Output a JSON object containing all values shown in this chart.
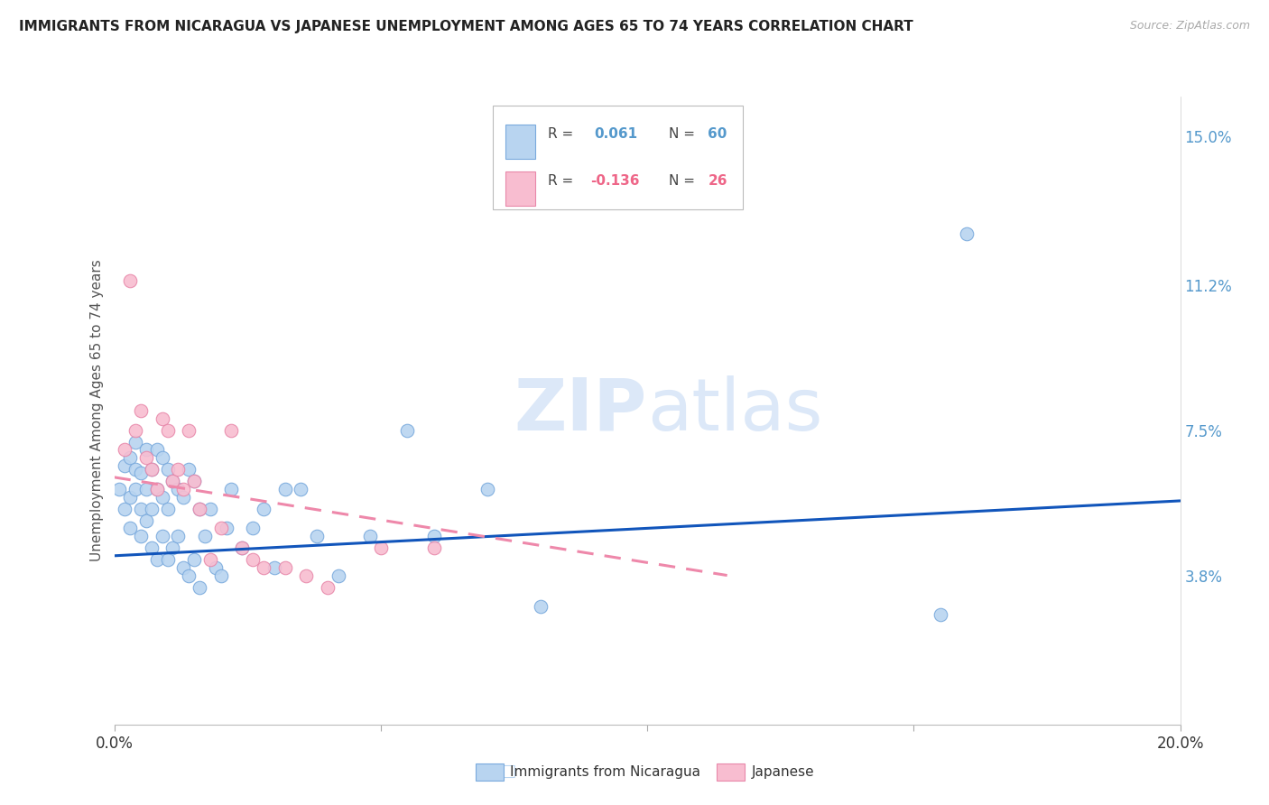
{
  "title": "IMMIGRANTS FROM NICARAGUA VS JAPANESE UNEMPLOYMENT AMONG AGES 65 TO 74 YEARS CORRELATION CHART",
  "source": "Source: ZipAtlas.com",
  "ylabel": "Unemployment Among Ages 65 to 74 years",
  "xlim": [
    0.0,
    0.2
  ],
  "ylim": [
    0.0,
    0.16
  ],
  "right_yticks": [
    0.038,
    0.075,
    0.112,
    0.15
  ],
  "right_yticklabels": [
    "3.8%",
    "7.5%",
    "11.2%",
    "15.0%"
  ],
  "blue_color": "#b8d4f0",
  "blue_edge": "#7aaadd",
  "pink_color": "#f8bdd0",
  "pink_edge": "#e888aa",
  "trend_blue": "#1155bb",
  "trend_pink": "#ee88aa",
  "watermark_color": "#dce8f8",
  "blue_scatter_x": [
    0.001,
    0.002,
    0.002,
    0.003,
    0.003,
    0.003,
    0.004,
    0.004,
    0.004,
    0.005,
    0.005,
    0.005,
    0.006,
    0.006,
    0.006,
    0.007,
    0.007,
    0.007,
    0.008,
    0.008,
    0.008,
    0.009,
    0.009,
    0.009,
    0.01,
    0.01,
    0.01,
    0.011,
    0.011,
    0.012,
    0.012,
    0.013,
    0.013,
    0.014,
    0.014,
    0.015,
    0.015,
    0.016,
    0.016,
    0.017,
    0.018,
    0.019,
    0.02,
    0.021,
    0.022,
    0.024,
    0.026,
    0.028,
    0.03,
    0.032,
    0.035,
    0.038,
    0.042,
    0.048,
    0.055,
    0.06,
    0.07,
    0.08,
    0.155,
    0.16
  ],
  "blue_scatter_y": [
    0.06,
    0.066,
    0.055,
    0.068,
    0.058,
    0.05,
    0.065,
    0.072,
    0.06,
    0.064,
    0.055,
    0.048,
    0.07,
    0.06,
    0.052,
    0.065,
    0.055,
    0.045,
    0.07,
    0.06,
    0.042,
    0.068,
    0.058,
    0.048,
    0.065,
    0.055,
    0.042,
    0.062,
    0.045,
    0.06,
    0.048,
    0.058,
    0.04,
    0.065,
    0.038,
    0.062,
    0.042,
    0.055,
    0.035,
    0.048,
    0.055,
    0.04,
    0.038,
    0.05,
    0.06,
    0.045,
    0.05,
    0.055,
    0.04,
    0.06,
    0.06,
    0.048,
    0.038,
    0.048,
    0.075,
    0.048,
    0.06,
    0.03,
    0.028,
    0.125
  ],
  "pink_scatter_x": [
    0.002,
    0.003,
    0.004,
    0.005,
    0.006,
    0.007,
    0.008,
    0.009,
    0.01,
    0.011,
    0.012,
    0.013,
    0.014,
    0.015,
    0.016,
    0.018,
    0.02,
    0.022,
    0.024,
    0.026,
    0.028,
    0.032,
    0.036,
    0.04,
    0.05,
    0.06
  ],
  "pink_scatter_y": [
    0.07,
    0.113,
    0.075,
    0.08,
    0.068,
    0.065,
    0.06,
    0.078,
    0.075,
    0.062,
    0.065,
    0.06,
    0.075,
    0.062,
    0.055,
    0.042,
    0.05,
    0.075,
    0.045,
    0.042,
    0.04,
    0.04,
    0.038,
    0.035,
    0.045,
    0.045
  ],
  "blue_trend_x": [
    0.0,
    0.2
  ],
  "blue_trend_y": [
    0.043,
    0.057
  ],
  "pink_trend_x": [
    0.0,
    0.115
  ],
  "pink_trend_y": [
    0.063,
    0.038
  ],
  "grid_color": "#dddddd",
  "background_color": "#ffffff",
  "legend_blue_label": "Immigrants from Nicaragua",
  "legend_pink_label": "Japanese"
}
